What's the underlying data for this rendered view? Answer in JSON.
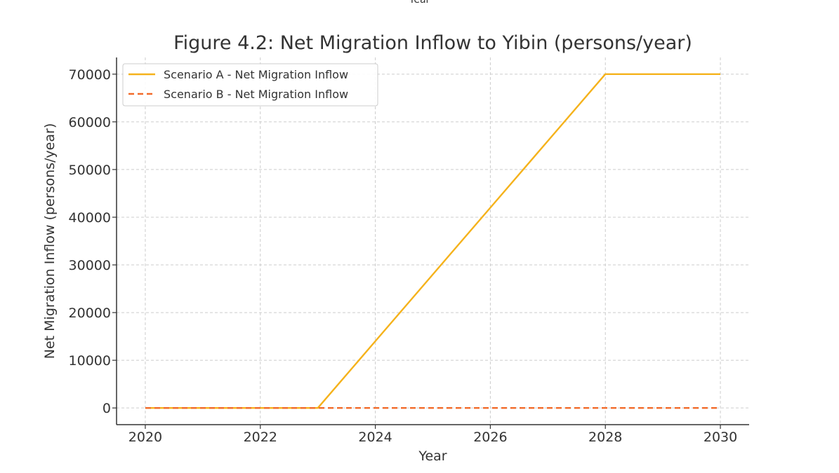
{
  "top_fragment": "Year",
  "chart_data": {
    "type": "line",
    "title": "Figure 4.2: Net Migration Inflow to Yibin (persons/year)",
    "xlabel": "Year",
    "ylabel": "Net Migration Inflow (persons/year)",
    "xlim": [
      2019.5,
      2030.5
    ],
    "ylim": [
      -3500,
      73500
    ],
    "xticks": [
      2020,
      2022,
      2024,
      2026,
      2028,
      2030
    ],
    "yticks": [
      0,
      10000,
      20000,
      30000,
      40000,
      50000,
      60000,
      70000
    ],
    "grid": true,
    "legend_position": "top-left",
    "series": [
      {
        "name": "Scenario A - Net Migration Inflow",
        "color": "#f5b21b",
        "style": "solid",
        "x": [
          2020,
          2021,
          2022,
          2023,
          2024,
          2025,
          2026,
          2027,
          2028,
          2029,
          2030
        ],
        "y": [
          0,
          0,
          0,
          0,
          14000,
          28000,
          42000,
          56000,
          70000,
          70000,
          70000
        ]
      },
      {
        "name": "Scenario B - Net Migration Inflow",
        "color": "#f26b2a",
        "style": "dashed",
        "x": [
          2020,
          2021,
          2022,
          2023,
          2024,
          2025,
          2026,
          2027,
          2028,
          2029,
          2030
        ],
        "y": [
          0,
          0,
          0,
          0,
          0,
          0,
          0,
          0,
          0,
          0,
          0
        ]
      }
    ]
  }
}
